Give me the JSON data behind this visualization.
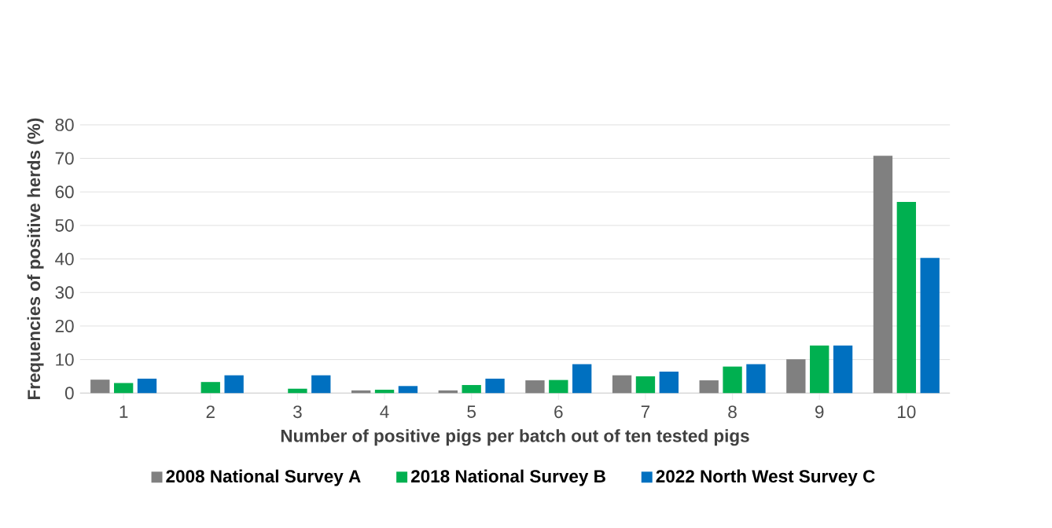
{
  "chart_data": {
    "type": "bar",
    "xlabel": "Number of positive pigs per batch out of ten tested pigs",
    "ylabel": "Frequencies of positive herds (%)",
    "categories": [
      "1",
      "2",
      "3",
      "4",
      "5",
      "6",
      "7",
      "8",
      "9",
      "10"
    ],
    "series": [
      {
        "name": "2008 National Survey A",
        "color": "#808080",
        "values": [
          4.0,
          0,
          0,
          0.8,
          0.8,
          3.8,
          5.3,
          3.8,
          10.1,
          70.8
        ]
      },
      {
        "name": "2018 National Survey B",
        "color": "#00b050",
        "values": [
          3.0,
          3.3,
          1.3,
          1.0,
          2.4,
          3.9,
          5.0,
          7.9,
          14.2,
          57.0
        ]
      },
      {
        "name": "2022 North West Survey C",
        "color": "#0070c0",
        "values": [
          4.3,
          5.3,
          5.3,
          2.1,
          4.3,
          8.6,
          6.4,
          8.6,
          14.2,
          40.3
        ]
      }
    ],
    "ylim": [
      0,
      80
    ],
    "yticks": [
      0,
      10,
      20,
      30,
      40,
      50,
      60,
      70,
      80
    ],
    "grid": "y",
    "legend": "bottom"
  }
}
